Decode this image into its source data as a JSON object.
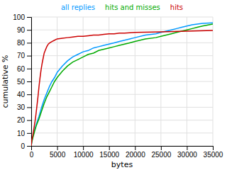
{
  "chart_data": {
    "type": "line",
    "xlabel": "bytes",
    "ylabel": "cumulative %",
    "xlim": [
      0,
      35000
    ],
    "ylim": [
      0,
      100
    ],
    "xticks": [
      0,
      5000,
      10000,
      15000,
      20000,
      25000,
      30000,
      35000
    ],
    "yticks": [
      0,
      10,
      20,
      30,
      40,
      50,
      60,
      70,
      80,
      90,
      100
    ],
    "grid": true,
    "legend": "top",
    "series": [
      {
        "name": "all replies",
        "color": "#0099ff",
        "x": [
          0,
          100,
          300,
          500,
          700,
          1000,
          1500,
          2000,
          2500,
          3000,
          3500,
          4000,
          4500,
          5000,
          6000,
          7000,
          8000,
          9000,
          10000,
          11000,
          12000,
          13000,
          14000,
          15000,
          16000,
          17000,
          18000,
          19000,
          20000,
          22000,
          24000,
          25000,
          26000,
          27000,
          28000,
          29000,
          30000,
          31000,
          32000,
          33000,
          35000
        ],
        "values": [
          0,
          3,
          7,
          10,
          13,
          17,
          23,
          30,
          36,
          41,
          46,
          50,
          53,
          57,
          62,
          66,
          69,
          71,
          73,
          74,
          76,
          77,
          78,
          79,
          80,
          81,
          82,
          83,
          84,
          86,
          87,
          88,
          89,
          90,
          91,
          92,
          93,
          94,
          94.5,
          95,
          95.5
        ]
      },
      {
        "name": "hits and misses",
        "color": "#00aa00",
        "x": [
          0,
          100,
          300,
          500,
          700,
          1000,
          1500,
          2000,
          2500,
          3000,
          3500,
          4000,
          4500,
          5000,
          6000,
          7000,
          8000,
          9000,
          10000,
          11000,
          12000,
          13000,
          14000,
          15000,
          16000,
          17000,
          18000,
          19000,
          20000,
          22000,
          24000,
          25000,
          26000,
          27000,
          28000,
          29000,
          30000,
          31000,
          32000,
          33000,
          35000
        ],
        "values": [
          0,
          3,
          6,
          9,
          12,
          16,
          21,
          27,
          33,
          38,
          42,
          46,
          50,
          53,
          58,
          62,
          65,
          67,
          69,
          71,
          72,
          74,
          75,
          76,
          77,
          78,
          79,
          80,
          81,
          83,
          84,
          85,
          86,
          87,
          88,
          89,
          90,
          91,
          92,
          93,
          94.5
        ]
      },
      {
        "name": "hits",
        "color": "#cc0000",
        "x": [
          0,
          100,
          300,
          500,
          700,
          900,
          1100,
          1300,
          1500,
          1700,
          1900,
          2100,
          2300,
          2500,
          2700,
          3000,
          3300,
          3600,
          4000,
          4500,
          5000,
          6000,
          7000,
          8000,
          9000,
          10000,
          11000,
          12000,
          13000,
          14000,
          15000,
          16000,
          17000,
          18000,
          20000,
          25000,
          30000,
          35000
        ],
        "values": [
          0,
          4,
          8,
          13,
          18,
          24,
          31,
          38,
          46,
          53,
          59,
          64,
          68,
          72,
          74,
          77,
          79,
          80,
          81,
          82,
          83,
          83.5,
          84,
          84.5,
          85,
          85,
          85.5,
          86,
          86,
          86.5,
          87,
          87,
          87.5,
          87.5,
          88,
          88.5,
          89,
          89.5
        ]
      }
    ]
  }
}
